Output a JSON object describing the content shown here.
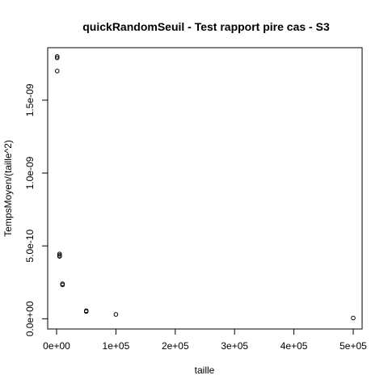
{
  "chart_data": {
    "type": "scatter",
    "title": "quickRandomSeuil - Test rapport pire cas - S3",
    "xlabel": "taille",
    "ylabel": "TempsMoyen/(taille^2)",
    "xlim": [
      -15000,
      515000
    ],
    "ylim": [
      -7e-11,
      1.86e-09
    ],
    "x_ticks": [
      {
        "value": 0,
        "label": "0e+00"
      },
      {
        "value": 100000,
        "label": "1e+05"
      },
      {
        "value": 200000,
        "label": "2e+05"
      },
      {
        "value": 300000,
        "label": "3e+05"
      },
      {
        "value": 400000,
        "label": "4e+05"
      },
      {
        "value": 500000,
        "label": "5e+05"
      }
    ],
    "y_ticks": [
      {
        "value": 0,
        "label": "0.0e+00"
      },
      {
        "value": 5e-10,
        "label": "5.0e-10"
      },
      {
        "value": 1e-09,
        "label": "1.0e-09"
      },
      {
        "value": 1.5e-09,
        "label": "1.5e-09"
      }
    ],
    "points": [
      {
        "x": 1000,
        "y": 1.8e-09
      },
      {
        "x": 1000,
        "y": 1.79e-09
      },
      {
        "x": 1000,
        "y": 1.7e-09
      },
      {
        "x": 5000,
        "y": 4.45e-10
      },
      {
        "x": 5000,
        "y": 4.35e-10
      },
      {
        "x": 5000,
        "y": 4.28e-10
      },
      {
        "x": 10000,
        "y": 2.4e-10
      },
      {
        "x": 10000,
        "y": 2.33e-10
      },
      {
        "x": 50000,
        "y": 5.5e-11
      },
      {
        "x": 50000,
        "y": 5e-11
      },
      {
        "x": 100000,
        "y": 3e-11
      },
      {
        "x": 500000,
        "y": 5e-12
      }
    ],
    "grid": false,
    "marker": "open-circle"
  }
}
